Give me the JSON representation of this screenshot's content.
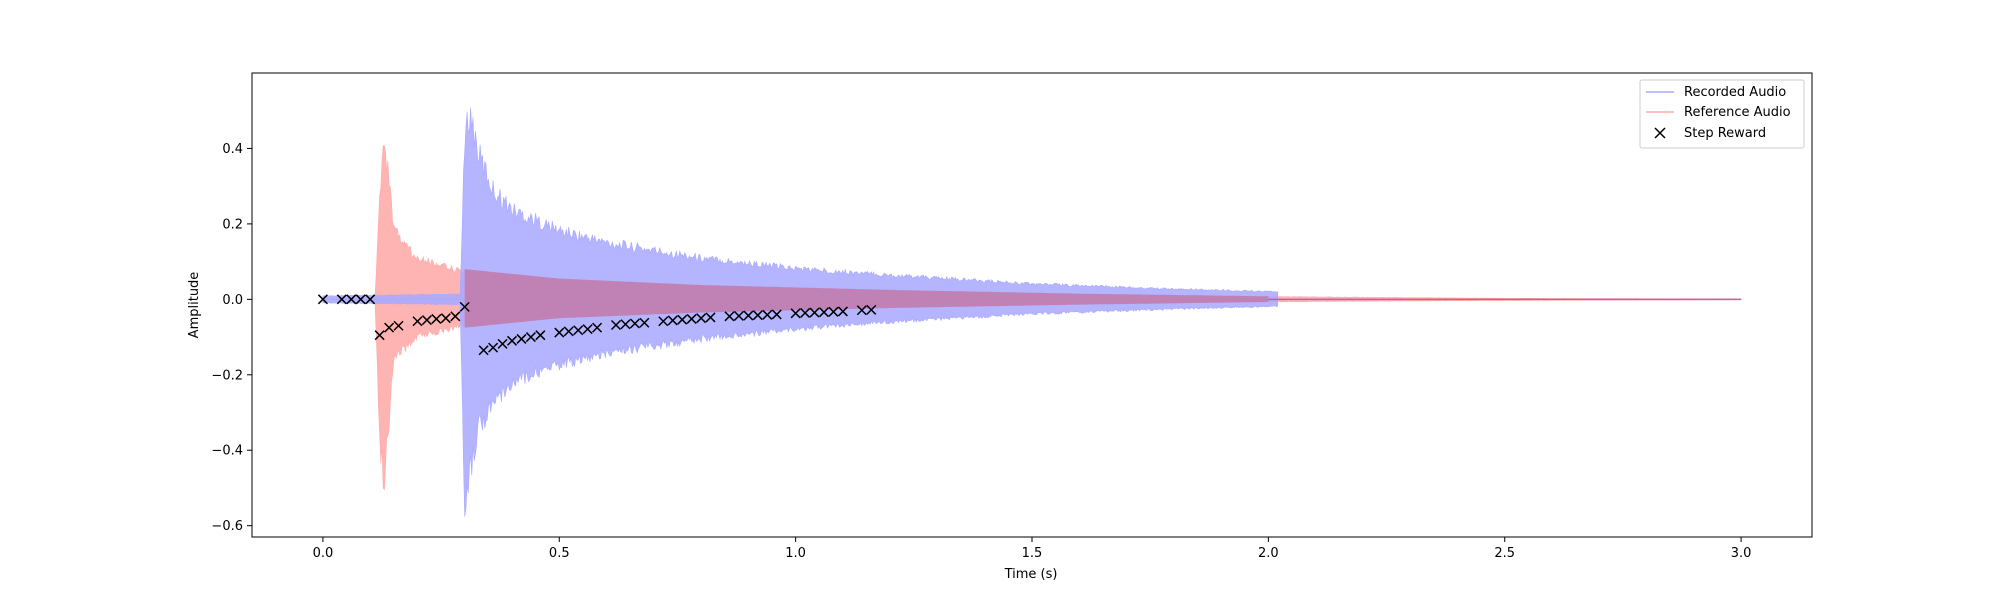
{
  "chart_data": {
    "type": "line",
    "title": "",
    "xlabel": "Time (s)",
    "ylabel": "Amplitude",
    "xlim": [
      -0.15,
      3.15
    ],
    "ylim": [
      -0.63,
      0.6
    ],
    "xticks": [
      0.0,
      0.5,
      1.0,
      1.5,
      2.0,
      2.5,
      3.0
    ],
    "xtick_labels": [
      "0.0",
      "0.5",
      "1.0",
      "1.5",
      "2.0",
      "2.5",
      "3.0"
    ],
    "yticks": [
      -0.6,
      -0.4,
      -0.2,
      0.0,
      0.2,
      0.4
    ],
    "ytick_labels": [
      "−0.6",
      "−0.4",
      "−0.2",
      "0.0",
      "0.2",
      "0.4"
    ],
    "grid": false,
    "legend_position": "top-right",
    "series": [
      {
        "name": "Recorded Audio",
        "kind": "audio-waveform",
        "color": "#aaaaff",
        "envelope": {
          "x": [
            0.0,
            0.29,
            0.3,
            0.31,
            0.33,
            0.36,
            0.4,
            0.5,
            0.6,
            0.8,
            1.0,
            1.2,
            1.5,
            1.8,
            2.02
          ],
          "upper": [
            0.01,
            0.015,
            0.45,
            0.55,
            0.42,
            0.32,
            0.26,
            0.2,
            0.165,
            0.12,
            0.09,
            0.07,
            0.045,
            0.03,
            0.022
          ],
          "lower": [
            -0.01,
            -0.015,
            -0.58,
            -0.5,
            -0.38,
            -0.3,
            -0.24,
            -0.19,
            -0.155,
            -0.115,
            -0.085,
            -0.065,
            -0.042,
            -0.028,
            -0.02
          ]
        }
      },
      {
        "name": "Reference Audio",
        "kind": "audio-waveform",
        "color": "#ffaaaa",
        "envelope": {
          "x": [
            0.0,
            0.11,
            0.12,
            0.13,
            0.15,
            0.2,
            0.3,
            0.5,
            0.8,
            1.2,
            1.6,
            2.0,
            2.5,
            3.0
          ],
          "upper": [
            0.0,
            0.0,
            0.3,
            0.47,
            0.2,
            0.12,
            0.08,
            0.055,
            0.038,
            0.025,
            0.015,
            0.008,
            0.003,
            0.001
          ],
          "lower": [
            0.0,
            0.0,
            -0.4,
            -0.54,
            -0.17,
            -0.11,
            -0.075,
            -0.05,
            -0.035,
            -0.023,
            -0.014,
            -0.007,
            -0.003,
            -0.001
          ]
        }
      },
      {
        "name": "Step Reward",
        "kind": "scatter",
        "marker": "x",
        "color": "#000000",
        "x": [
          0.0,
          0.04,
          0.06,
          0.08,
          0.1,
          0.12,
          0.14,
          0.16,
          0.2,
          0.22,
          0.24,
          0.26,
          0.28,
          0.3,
          0.34,
          0.36,
          0.38,
          0.4,
          0.42,
          0.44,
          0.46,
          0.5,
          0.52,
          0.54,
          0.56,
          0.58,
          0.62,
          0.64,
          0.66,
          0.68,
          0.72,
          0.74,
          0.76,
          0.78,
          0.8,
          0.82,
          0.86,
          0.88,
          0.9,
          0.92,
          0.94,
          0.96,
          1.0,
          1.02,
          1.04,
          1.06,
          1.08,
          1.1,
          1.14,
          1.16
        ],
        "y": [
          0.0,
          0.0,
          0.0,
          0.0,
          0.0,
          -0.095,
          -0.075,
          -0.07,
          -0.058,
          -0.055,
          -0.052,
          -0.05,
          -0.045,
          -0.02,
          -0.135,
          -0.128,
          -0.118,
          -0.11,
          -0.105,
          -0.1,
          -0.095,
          -0.088,
          -0.085,
          -0.082,
          -0.079,
          -0.075,
          -0.068,
          -0.066,
          -0.064,
          -0.062,
          -0.058,
          -0.056,
          -0.054,
          -0.052,
          -0.05,
          -0.048,
          -0.045,
          -0.044,
          -0.043,
          -0.042,
          -0.041,
          -0.04,
          -0.037,
          -0.036,
          -0.035,
          -0.034,
          -0.033,
          -0.032,
          -0.029,
          -0.028
        ]
      }
    ]
  }
}
